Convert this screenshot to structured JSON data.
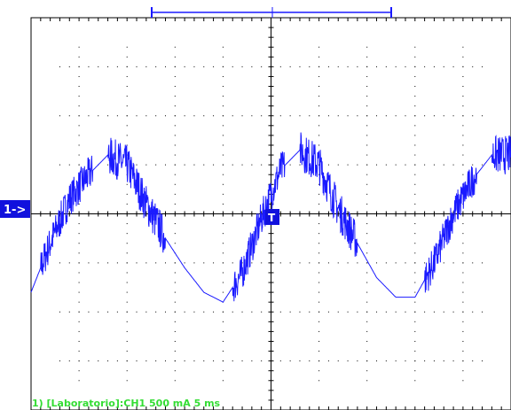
{
  "screen": {
    "channel_marker": "1->",
    "trigger_marker": "T",
    "footer_label": "1) [Laboratorio]:CH1  500 mA   5 ms",
    "colors": {
      "trace": "#1a1aff",
      "marker_bg": "#1111dd",
      "footer": "#33dd33",
      "grid": "#000000"
    }
  },
  "chart_data": {
    "type": "line",
    "title": "",
    "xlabel": "",
    "ylabel": "",
    "grid": true,
    "x_divisions": 10,
    "y_divisions": 8,
    "xlim": [
      0,
      50
    ],
    "ylim": [
      -2000,
      2000
    ],
    "units": {
      "x": "ms",
      "y": "mA"
    },
    "scale": {
      "volts_per_div": "500 mA",
      "time_per_div": "5 ms"
    },
    "series": [
      {
        "x": [
          0,
          2,
          4,
          6,
          8,
          10,
          12,
          14,
          16,
          18,
          20,
          22,
          24,
          26,
          28,
          30,
          32,
          34,
          36,
          38,
          40,
          42,
          44,
          46,
          48,
          50
        ],
        "y": [
          -800,
          -300,
          150,
          400,
          600,
          500,
          100,
          -250,
          -550,
          -800,
          -900,
          -600,
          -50,
          450,
          650,
          500,
          50,
          -300,
          -650,
          -850,
          -850,
          -500,
          0,
          350,
          600,
          600
        ]
      }
    ]
  }
}
